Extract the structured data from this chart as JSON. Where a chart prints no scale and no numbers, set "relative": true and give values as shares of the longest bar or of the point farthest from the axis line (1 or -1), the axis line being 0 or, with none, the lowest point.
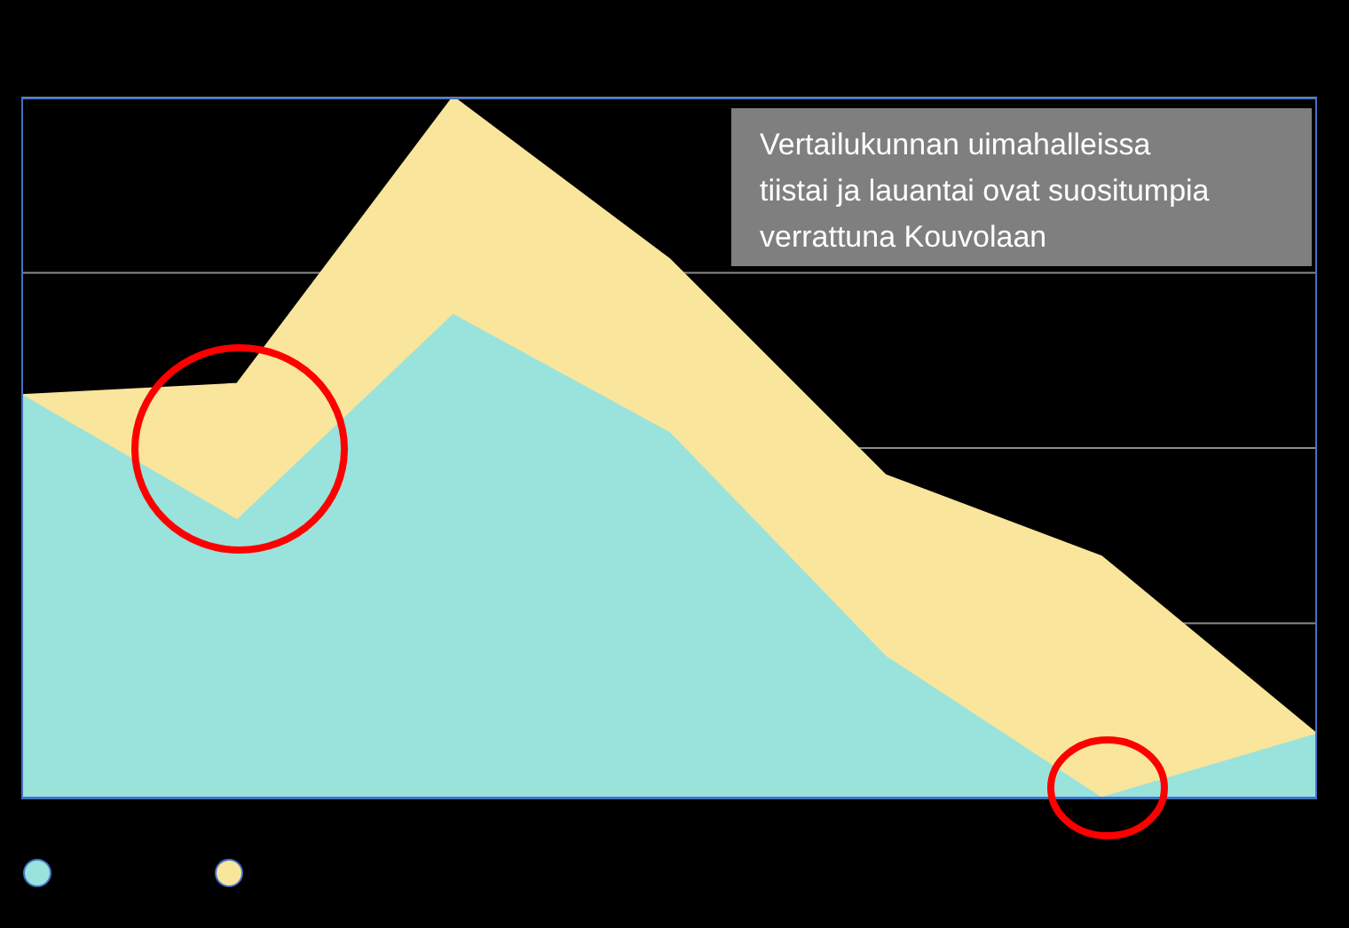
{
  "chart_data": {
    "type": "area",
    "relative": true,
    "categories": [
      null,
      null,
      null,
      null,
      null,
      null,
      null
    ],
    "series": [
      {
        "color": "#f9e59b",
        "values": [
          0.575,
          0.591,
          1,
          0.769,
          0.461,
          0.345,
          0.091
        ]
      },
      {
        "color": "#99e3dc",
        "values": [
          0.575,
          0.396,
          0.689,
          0.521,
          0.202,
          0,
          0.091
        ]
      }
    ],
    "annotations": [
      "Vertailukunnan uimahalleissa tiistai ja lauantai ovat suositumpia verrattuna  Kouvolaan"
    ],
    "grid": "y"
  }
}
